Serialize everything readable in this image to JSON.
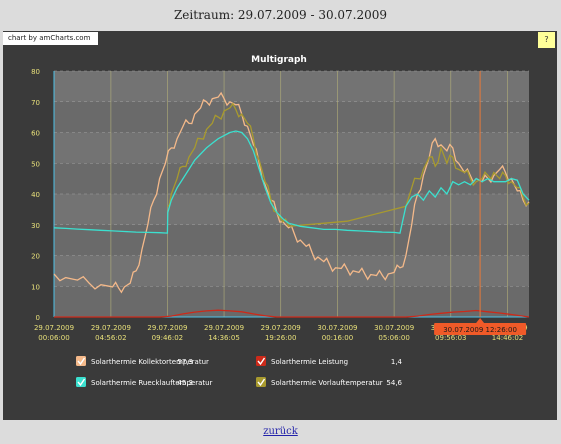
{
  "heading": "Zeitraum: 29.07.2009 - 30.07.2009",
  "credit": "chart by amCharts.com",
  "help_label": "?",
  "back_link": "zurück",
  "chart_data": {
    "type": "line",
    "title": "Multigraph",
    "ylim": [
      0,
      80
    ],
    "yticks": [
      0,
      10,
      20,
      30,
      40,
      50,
      60,
      70,
      80
    ],
    "grid": true,
    "x_range": [
      0,
      40.5
    ],
    "x_ticks": [
      {
        "x": 0.0,
        "date": "29.07.2009",
        "time": "00:06:00"
      },
      {
        "x": 4.85,
        "date": "29.07.2009",
        "time": "04:56:02"
      },
      {
        "x": 9.67,
        "date": "29.07.2009",
        "time": "09:46:02"
      },
      {
        "x": 14.5,
        "date": "29.07.2009",
        "time": "14:36:05"
      },
      {
        "x": 19.33,
        "date": "29.07.2009",
        "time": "19:26:00"
      },
      {
        "x": 24.17,
        "date": "30.07.2009",
        "time": "00:16:00"
      },
      {
        "x": 29.0,
        "date": "30.07.2009",
        "time": "05:06:00"
      },
      {
        "x": 33.83,
        "date": "30.07.2009",
        "time": "09:56:03"
      },
      {
        "x": 38.67,
        "date": "30.07.2009",
        "time": "14:46:02"
      }
    ],
    "cursor": {
      "x": 36.33,
      "label": "30.07.2009 12:26:00"
    },
    "series": [
      {
        "name": "Solarthermie Kollektortemperatur",
        "value_text": "57,3",
        "color": "#f4b98a",
        "x": [
          0,
          1,
          2,
          3,
          4,
          5,
          5.5,
          6,
          6.5,
          7,
          7.5,
          8,
          8.5,
          9,
          9.5,
          10,
          10.5,
          11,
          11.5,
          12,
          12.5,
          13,
          13.5,
          14,
          14.5,
          15,
          15.5,
          16,
          16.5,
          17,
          17.5,
          18,
          18.5,
          19,
          19.5,
          20,
          20.5,
          21,
          21.5,
          22,
          22.5,
          23,
          23.5,
          24,
          24.5,
          25,
          25.5,
          26,
          26.5,
          27,
          27.5,
          28,
          28.5,
          29,
          29.5,
          30,
          30.5,
          31,
          31.5,
          32,
          32.5,
          33,
          33.5,
          34,
          34.5,
          35,
          35.5,
          36,
          36.5,
          37,
          37.5,
          38,
          38.5,
          39,
          39.5,
          40,
          40.5
        ],
        "values": [
          14,
          12.8,
          12,
          11,
          10.5,
          9.8,
          9.5,
          9.8,
          11,
          15,
          22,
          30,
          38,
          45,
          50,
          55,
          58,
          62,
          63,
          66,
          68,
          70,
          71,
          71.5,
          71,
          70,
          69,
          66,
          62,
          56,
          50,
          43,
          38,
          34,
          31,
          29,
          27,
          25,
          23,
          21,
          19.5,
          18,
          17,
          16,
          15.8,
          15.5,
          15,
          14.5,
          14,
          13.8,
          13.5,
          13.5,
          14,
          14.5,
          16,
          20,
          30,
          40,
          46,
          52,
          58,
          56,
          54,
          55,
          50,
          47,
          46,
          45,
          44,
          45,
          46,
          48,
          47,
          45,
          41,
          38,
          37.5
        ],
        "noise": true
      },
      {
        "name": "Solarthermie Ruecklauftemperatur",
        "value_text": "45,3",
        "color": "#3be0cf",
        "x": [
          0,
          1,
          2,
          3,
          4,
          5,
          6,
          7,
          8,
          9,
          9.67,
          9.7,
          10,
          10.5,
          11,
          11.5,
          12,
          12.5,
          13,
          13.5,
          14,
          14.5,
          15,
          15.5,
          16,
          16.5,
          17,
          17.5,
          18,
          18.5,
          19,
          19.5,
          20,
          21,
          22,
          23,
          24,
          25,
          26,
          27,
          28,
          29,
          29.5,
          30,
          30.5,
          31,
          31.5,
          32,
          32.5,
          33,
          33.5,
          34,
          34.5,
          35,
          35.5,
          36,
          36.5,
          37,
          37.5,
          38,
          38.5,
          39,
          39.5,
          40,
          40.5
        ],
        "values": [
          29,
          28.8,
          28.6,
          28.4,
          28.2,
          28,
          27.8,
          27.6,
          27.5,
          27.4,
          27.3,
          34,
          38,
          42,
          45,
          48,
          51,
          53,
          55,
          56.5,
          58,
          59,
          60,
          60.5,
          60,
          58,
          54,
          48,
          42,
          37,
          34,
          32,
          30.5,
          29.5,
          29,
          28.5,
          28.5,
          28.2,
          28,
          27.8,
          27.6,
          27.5,
          27.3,
          36,
          39,
          40,
          38,
          41,
          39,
          42,
          40,
          44,
          43,
          44,
          43,
          45,
          44,
          45,
          44,
          44,
          44,
          45,
          44.5,
          40,
          38
        ],
        "noise": false
      },
      {
        "name": "Solarthermie Leistung",
        "value_text": "1,4",
        "color": "#cc2a1a",
        "x": [
          0,
          9,
          10,
          11,
          12,
          13,
          14,
          15,
          16,
          17,
          18,
          19,
          20,
          30,
          31,
          32,
          33,
          34,
          35,
          36,
          37,
          38,
          39,
          40,
          40.5
        ],
        "values": [
          0,
          0,
          0.3,
          1,
          1.6,
          2,
          2.2,
          2,
          1.7,
          1,
          0.4,
          0,
          0,
          0,
          0.3,
          0.8,
          1.2,
          1.6,
          1.8,
          2.1,
          1.7,
          1.3,
          0.8,
          0.3,
          0
        ],
        "noise": false
      },
      {
        "name": "Solarthermie Vorlauftemperatur",
        "value_text": "54,6",
        "color": "#a89a2e",
        "x": [
          9.67,
          10,
          10.5,
          11,
          11.5,
          12,
          12.5,
          13,
          13.5,
          14,
          14.5,
          15,
          15.5,
          16,
          16.5,
          17,
          17.5,
          18,
          18.5,
          19,
          19.5,
          20,
          30,
          30.5,
          31,
          31.5,
          32,
          32.5,
          33,
          33.5,
          34,
          34.5,
          35,
          35.5,
          36,
          36.5,
          37,
          37.5,
          38,
          38.5,
          39,
          39.5,
          40,
          40.5
        ],
        "values": [
          36,
          40,
          45,
          49,
          52,
          55,
          58,
          61,
          63,
          65,
          67,
          68,
          67.5,
          66,
          63,
          58,
          51,
          44,
          38,
          34,
          31,
          29.5,
          36,
          42,
          45,
          48,
          52,
          49,
          55,
          50,
          52,
          48,
          47,
          45,
          44,
          45,
          46,
          47,
          45,
          46,
          44,
          42,
          39,
          37
        ],
        "noise": true
      }
    ]
  }
}
